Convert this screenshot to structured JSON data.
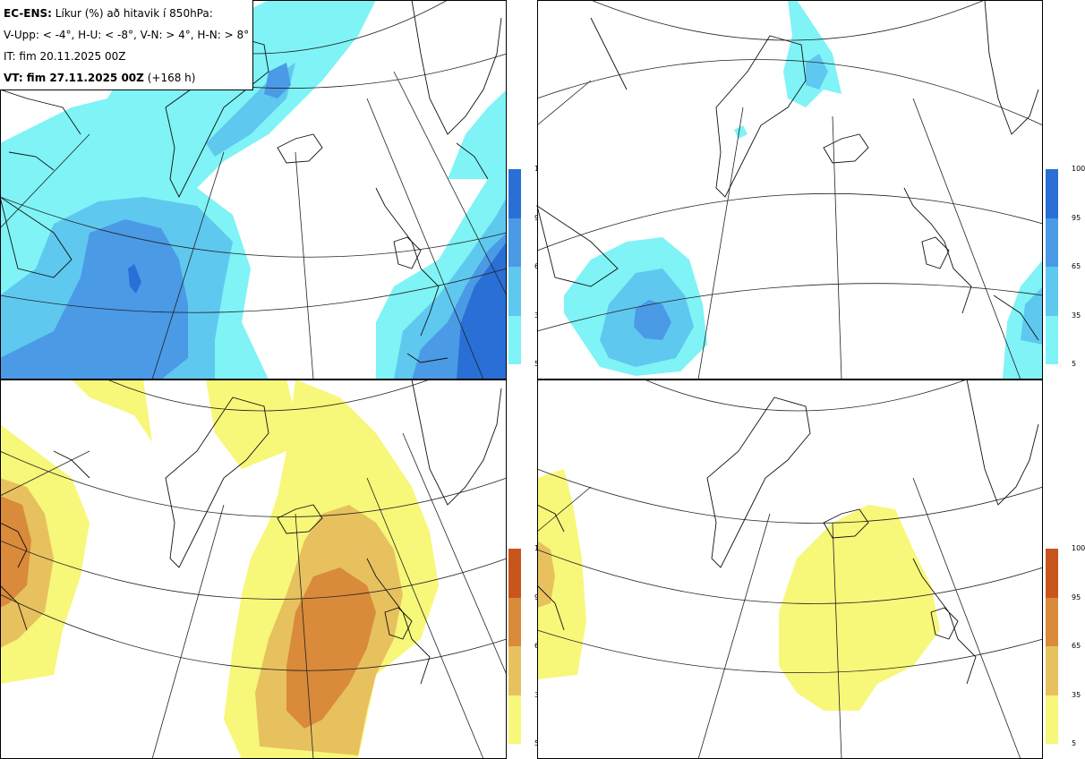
{
  "title_box": {
    "line1_bold": "EC-ENS:",
    "line1_rest": "Líkur (%) að hitavik í 850hPa:",
    "line2": "V-Upp: < -4°, H-U: < -8°, V-N: > 4°, H-N: > 8°",
    "line3": "IT: fim 20.11.2025 00Z",
    "line4_bold": "VT: fim 27.11.2025 00Z",
    "line4_rest": "(+168 h)"
  },
  "colorbar_cold": {
    "ticks": [
      "100",
      "95",
      "65",
      "35",
      "5"
    ],
    "colors": [
      "#2a6fd6",
      "#4a9ae6",
      "#5fc8ef",
      "#7ff3f6"
    ]
  },
  "colorbar_warm": {
    "ticks": [
      "100",
      "95",
      "65",
      "35",
      "5"
    ],
    "colors": [
      "#c8551c",
      "#d98a3a",
      "#e8c15f",
      "#f7f77a"
    ]
  },
  "panels": [
    {
      "name": "top-left",
      "label": "V-Upp < -4°"
    },
    {
      "name": "top-right",
      "label": "H-U < -8°"
    },
    {
      "name": "bottom-left",
      "label": "V-N > 4°"
    },
    {
      "name": "bottom-right",
      "label": "H-N > 8°"
    }
  ]
}
